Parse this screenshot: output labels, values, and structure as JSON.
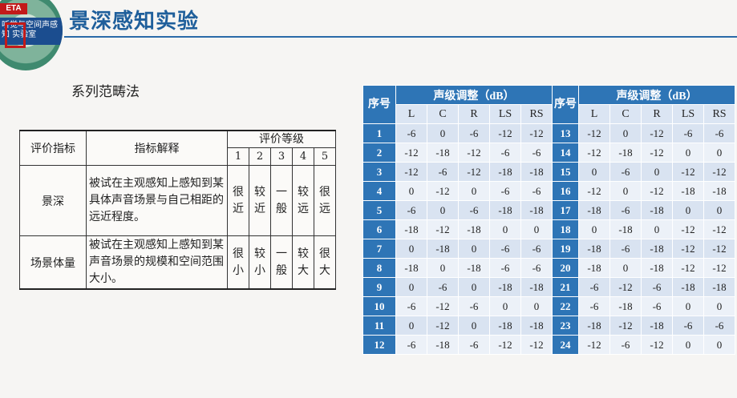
{
  "header": {
    "title": "景深感知实验",
    "logo_badge": "ETA",
    "logo_text": "听觉与空间声感知 实验室"
  },
  "subtitle": "系列范畴法",
  "eval_table": {
    "col_indicator": "评价指标",
    "col_explain": "指标解释",
    "col_grade": "评价等级",
    "levels": [
      "1",
      "2",
      "3",
      "4",
      "5"
    ],
    "rows": [
      {
        "name": "景深",
        "explain": "被试在主观感知上感知到某具体声音场景与自己相距的远近程度。",
        "grades": [
          "很近",
          "较近",
          "一般",
          "较远",
          "很远"
        ]
      },
      {
        "name": "场景体量",
        "explain": "被试在主观感知上感知到某声音场景的规模和空间范围大小。",
        "grades": [
          "很小",
          "较小",
          "一般",
          "较大",
          "很大"
        ]
      }
    ]
  },
  "data_table": {
    "seq_label": "序号",
    "group_label": "声级调整（dB）",
    "channels": [
      "L",
      "C",
      "R",
      "LS",
      "RS"
    ],
    "rows": [
      {
        "left": {
          "n": "1",
          "v": [
            "-6",
            "0",
            "-6",
            "-12",
            "-12"
          ]
        },
        "right": {
          "n": "13",
          "v": [
            "-12",
            "0",
            "-12",
            "-6",
            "-6"
          ]
        }
      },
      {
        "left": {
          "n": "2",
          "v": [
            "-12",
            "-18",
            "-12",
            "-6",
            "-6"
          ]
        },
        "right": {
          "n": "14",
          "v": [
            "-12",
            "-18",
            "-12",
            "0",
            "0"
          ]
        }
      },
      {
        "left": {
          "n": "3",
          "v": [
            "-12",
            "-6",
            "-12",
            "-18",
            "-18"
          ]
        },
        "right": {
          "n": "15",
          "v": [
            "0",
            "-6",
            "0",
            "-12",
            "-12"
          ]
        }
      },
      {
        "left": {
          "n": "4",
          "v": [
            "0",
            "-12",
            "0",
            "-6",
            "-6"
          ]
        },
        "right": {
          "n": "16",
          "v": [
            "-12",
            "0",
            "-12",
            "-18",
            "-18"
          ]
        }
      },
      {
        "left": {
          "n": "5",
          "v": [
            "-6",
            "0",
            "-6",
            "-18",
            "-18"
          ]
        },
        "right": {
          "n": "17",
          "v": [
            "-18",
            "-6",
            "-18",
            "0",
            "0"
          ]
        }
      },
      {
        "left": {
          "n": "6",
          "v": [
            "-18",
            "-12",
            "-18",
            "0",
            "0"
          ]
        },
        "right": {
          "n": "18",
          "v": [
            "0",
            "-18",
            "0",
            "-12",
            "-12"
          ]
        }
      },
      {
        "left": {
          "n": "7",
          "v": [
            "0",
            "-18",
            "0",
            "-6",
            "-6"
          ]
        },
        "right": {
          "n": "19",
          "v": [
            "-18",
            "-6",
            "-18",
            "-12",
            "-12"
          ]
        }
      },
      {
        "left": {
          "n": "8",
          "v": [
            "-18",
            "0",
            "-18",
            "-6",
            "-6"
          ]
        },
        "right": {
          "n": "20",
          "v": [
            "-18",
            "0",
            "-18",
            "-12",
            "-12"
          ]
        }
      },
      {
        "left": {
          "n": "9",
          "v": [
            "0",
            "-6",
            "0",
            "-18",
            "-18"
          ]
        },
        "right": {
          "n": "21",
          "v": [
            "-6",
            "-12",
            "-6",
            "-18",
            "-18"
          ]
        }
      },
      {
        "left": {
          "n": "10",
          "v": [
            "-6",
            "-12",
            "-6",
            "0",
            "0"
          ]
        },
        "right": {
          "n": "22",
          "v": [
            "-6",
            "-18",
            "-6",
            "0",
            "0"
          ]
        }
      },
      {
        "left": {
          "n": "11",
          "v": [
            "0",
            "-12",
            "0",
            "-18",
            "-18"
          ]
        },
        "right": {
          "n": "23",
          "v": [
            "-18",
            "-12",
            "-18",
            "-6",
            "-6"
          ]
        }
      },
      {
        "left": {
          "n": "12",
          "v": [
            "-6",
            "-18",
            "-6",
            "-12",
            "-12"
          ]
        },
        "right": {
          "n": "24",
          "v": [
            "-12",
            "-6",
            "-12",
            "0",
            "0"
          ]
        }
      }
    ]
  },
  "colors": {
    "title": "#1f5f9b",
    "header_blue": "#2e75b6",
    "row_shade_a": "#d9e3f1",
    "row_shade_b": "#ecf1f8"
  }
}
